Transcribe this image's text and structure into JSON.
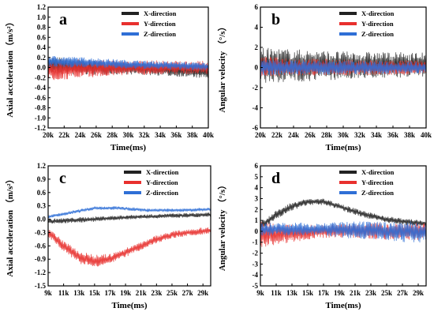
{
  "colors": {
    "x": "#222222",
    "y": "#e8302e",
    "z": "#2f6fd6"
  },
  "chart_data": [
    {
      "id": "a",
      "type": "line",
      "panel_label": "a",
      "xlabel": "Time(ms)",
      "ylabel": "Axial acceleration（m/s²）",
      "x_ticks": [
        "20k",
        "22k",
        "24k",
        "26k",
        "28k",
        "30k",
        "32k",
        "34k",
        "36k",
        "38k",
        "40k"
      ],
      "xlim": [
        20000,
        40000
      ],
      "y_ticks": [
        "1.2",
        "1.0",
        "0.8",
        "0.6",
        "0.4",
        "0.2",
        "0.0",
        "-0.2",
        "-0.4",
        "-0.6",
        "-0.8",
        "-1.0",
        "-1.2"
      ],
      "ylim": [
        -1.2,
        1.2
      ],
      "legend": [
        "X-direction",
        "Y-direction",
        "Z-direction"
      ],
      "legend_position": "top-right",
      "series": [
        {
          "name": "X-direction",
          "x": [
            20000,
            25000,
            30000,
            35000,
            40000
          ],
          "mean": [
            0.05,
            0.0,
            -0.02,
            -0.05,
            -0.1
          ],
          "amplitude": [
            0.18,
            0.15,
            0.12,
            0.12,
            0.12
          ]
        },
        {
          "name": "Y-direction",
          "x": [
            20000,
            25000,
            30000,
            35000,
            40000
          ],
          "mean": [
            -0.05,
            -0.02,
            0.0,
            0.0,
            0.0
          ],
          "amplitude": [
            0.22,
            0.18,
            0.15,
            0.14,
            0.13
          ]
        },
        {
          "name": "Z-direction",
          "x": [
            20000,
            25000,
            30000,
            35000,
            40000
          ],
          "mean": [
            0.12,
            0.1,
            0.06,
            0.04,
            0.02
          ],
          "amplitude": [
            0.12,
            0.1,
            0.09,
            0.08,
            0.08
          ]
        }
      ]
    },
    {
      "id": "b",
      "type": "line",
      "panel_label": "b",
      "xlabel": "Time(ms)",
      "ylabel": "Angular velocity （°/s）",
      "x_ticks": [
        "20k",
        "22k",
        "24k",
        "26k",
        "28k",
        "30k",
        "32k",
        "34k",
        "36k",
        "38k",
        "40k"
      ],
      "xlim": [
        20000,
        40000
      ],
      "y_ticks": [
        "6",
        "4",
        "2",
        "0",
        "-2",
        "-4",
        "-6"
      ],
      "ylim": [
        -6,
        6
      ],
      "legend": [
        "X-direction",
        "Y-direction",
        "Z-direction"
      ],
      "legend_position": "top-right",
      "series": [
        {
          "name": "X-direction",
          "x": [
            20000,
            30000,
            40000
          ],
          "mean": [
            0.2,
            0.2,
            0.3
          ],
          "amplitude": [
            1.8,
            1.4,
            1.2
          ]
        },
        {
          "name": "Y-direction",
          "x": [
            20000,
            30000,
            40000
          ],
          "mean": [
            0.1,
            0.0,
            0.0
          ],
          "amplitude": [
            1.0,
            0.8,
            0.7
          ]
        },
        {
          "name": "Z-direction",
          "x": [
            20000,
            30000,
            40000
          ],
          "mean": [
            0.0,
            0.0,
            0.0
          ],
          "amplitude": [
            0.8,
            0.7,
            0.6
          ]
        }
      ]
    },
    {
      "id": "c",
      "type": "line",
      "panel_label": "c",
      "xlabel": "Time(ms)",
      "ylabel": "Axial acceleration （m/s²）",
      "x_ticks": [
        "9k",
        "11k",
        "13k",
        "15k",
        "17k",
        "19k",
        "21k",
        "23k",
        "25k",
        "27k",
        "29k"
      ],
      "xlim": [
        9000,
        30000
      ],
      "y_ticks": [
        "1.2",
        "0.9",
        "0.6",
        "0.3",
        "0.0",
        "-0.3",
        "-0.6",
        "-0.9",
        "-1.2",
        "-1.5"
      ],
      "ylim": [
        -1.5,
        1.2
      ],
      "legend": [
        "X-direction",
        "Y-direction",
        "Z-direction"
      ],
      "legend_position": "top-right",
      "series": [
        {
          "name": "X-direction",
          "x": [
            9000,
            15000,
            20000,
            25000,
            30000
          ],
          "mean": [
            -0.05,
            0.0,
            0.05,
            0.08,
            0.1
          ],
          "amplitude": [
            0.06,
            0.06,
            0.05,
            0.05,
            0.05
          ]
        },
        {
          "name": "Y-direction",
          "x": [
            9000,
            11000,
            13000,
            15000,
            17000,
            19000,
            21000,
            23000,
            25000,
            27000,
            30000
          ],
          "mean": [
            -0.3,
            -0.6,
            -0.85,
            -0.95,
            -0.9,
            -0.75,
            -0.6,
            -0.45,
            -0.35,
            -0.3,
            -0.25
          ],
          "amplitude": [
            0.1,
            0.12,
            0.15,
            0.15,
            0.12,
            0.1,
            0.1,
            0.09,
            0.08,
            0.08,
            0.08
          ]
        },
        {
          "name": "Z-direction",
          "x": [
            9000,
            12000,
            15000,
            18000,
            22000,
            26000,
            30000
          ],
          "mean": [
            0.05,
            0.15,
            0.25,
            0.25,
            0.2,
            0.2,
            0.22
          ],
          "amplitude": [
            0.04,
            0.04,
            0.04,
            0.04,
            0.04,
            0.04,
            0.04
          ]
        }
      ]
    },
    {
      "id": "d",
      "type": "line",
      "panel_label": "d",
      "xlabel": "Time(ms)",
      "ylabel": "Angular velocity （°/s）",
      "x_ticks": [
        "9k",
        "11k",
        "13k",
        "15k",
        "17k",
        "19k",
        "21k",
        "23k",
        "25k",
        "27k",
        "29k"
      ],
      "xlim": [
        9000,
        30000
      ],
      "y_ticks": [
        "6",
        "5",
        "4",
        "3",
        "2",
        "1",
        "0",
        "-1",
        "-2",
        "-3",
        "-4",
        "-5"
      ],
      "ylim": [
        -5,
        6
      ],
      "legend": [
        "X-direction",
        "Y-direction",
        "Z-direction"
      ],
      "legend_position": "top-right",
      "series": [
        {
          "name": "X-direction",
          "x": [
            9000,
            11000,
            13000,
            15000,
            17000,
            19000,
            21000,
            23000,
            25000,
            27000,
            30000
          ],
          "mean": [
            0.5,
            1.5,
            2.3,
            2.7,
            2.7,
            2.3,
            1.8,
            1.4,
            1.1,
            0.9,
            0.7
          ],
          "amplitude": [
            0.4,
            0.4,
            0.4,
            0.3,
            0.3,
            0.3,
            0.3,
            0.3,
            0.3,
            0.3,
            0.3
          ]
        },
        {
          "name": "Y-direction",
          "x": [
            9000,
            13000,
            17000,
            21000,
            25000,
            30000
          ],
          "mean": [
            -0.3,
            -0.2,
            0.0,
            0.1,
            0.0,
            0.0
          ],
          "amplitude": [
            1.2,
            0.8,
            0.6,
            0.7,
            0.8,
            0.8
          ]
        },
        {
          "name": "Z-direction",
          "x": [
            9000,
            13000,
            17000,
            21000,
            25000,
            30000
          ],
          "mean": [
            0.2,
            0.2,
            0.2,
            0.1,
            0.0,
            -0.1
          ],
          "amplitude": [
            0.6,
            0.6,
            0.6,
            0.8,
            0.9,
            1.0
          ]
        }
      ]
    }
  ]
}
